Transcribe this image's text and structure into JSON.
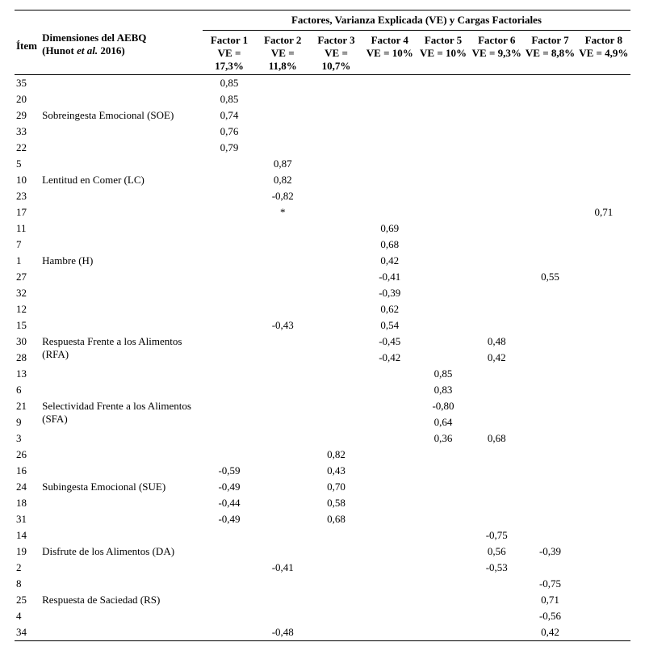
{
  "header": {
    "item": "Ítem",
    "dimension_line1": "Dimensiones del AEBQ",
    "dimension_line2_prefix": "(Hunot ",
    "dimension_line2_italic": "et al.",
    "dimension_line2_suffix": " 2016)",
    "span_title": "Factores, Varianza Explicada (VE) y Cargas Factoriales",
    "factors": [
      {
        "name": "Factor 1",
        "ve": "VE = 17,3%"
      },
      {
        "name": "Factor 2",
        "ve": "VE = 11,8%"
      },
      {
        "name": "Factor 3",
        "ve": "VE = 10,7%"
      },
      {
        "name": "Factor 4",
        "ve": "VE = 10%"
      },
      {
        "name": "Factor 5",
        "ve": "VE = 10%"
      },
      {
        "name": "Factor 6",
        "ve": "VE = 9,3%"
      },
      {
        "name": "Factor 7",
        "ve": "VE = 8,8%"
      },
      {
        "name": "Factor 8",
        "ve": "VE = 4,9%"
      }
    ]
  },
  "blocks": [
    {
      "label": "Sobreingesta Emocional (SOE)",
      "rows": [
        {
          "item": "35",
          "f1": "0,85"
        },
        {
          "item": "20",
          "f1": "0,85"
        },
        {
          "item": "29",
          "f1": "0,74"
        },
        {
          "item": "33",
          "f1": "0,76"
        },
        {
          "item": "22",
          "f1": "0,79"
        }
      ]
    },
    {
      "label": "Lentitud en Comer (LC)",
      "rows": [
        {
          "item": "5",
          "f2": "0,87"
        },
        {
          "item": "10",
          "f2": "0,82"
        },
        {
          "item": "23",
          "f2": "-0,82"
        },
        {
          "item": "17",
          "f2": "*",
          "f8": "0,71"
        }
      ]
    },
    {
      "label": "Hambre (H)",
      "rows": [
        {
          "item": "11",
          "f4": "0,69"
        },
        {
          "item": "7",
          "f4": "0,68"
        },
        {
          "item": "1",
          "f4": "0,42"
        },
        {
          "item": "27",
          "f4": "-0,41",
          "f7": "0,55"
        },
        {
          "item": "32",
          "f4": "-0,39"
        },
        {
          "item": "12",
          "f4": "0,62"
        }
      ]
    },
    {
      "label": "Respuesta Frente a los Alimentos (RFA)",
      "rows": [
        {
          "item": "15",
          "f2": "-0,43",
          "f4": "0,54"
        },
        {
          "item": "30",
          "f4": "-0,45",
          "f6": "0,48"
        },
        {
          "item": "28",
          "f4": "-0,42",
          "f6": "0,42"
        }
      ]
    },
    {
      "label": "Selectividad Frente a los Alimentos (SFA)",
      "rows": [
        {
          "item": "13",
          "f5": "0,85"
        },
        {
          "item": "6",
          "f5": "0,83"
        },
        {
          "item": "21",
          "f5": "-0,80"
        },
        {
          "item": "9",
          "f5": "0,64"
        },
        {
          "item": "3",
          "f5": "0,36",
          "f6": "0,68"
        }
      ]
    },
    {
      "label": "Subingesta Emocional (SUE)",
      "rows": [
        {
          "item": "26",
          "f3": "0,82"
        },
        {
          "item": "16",
          "f1": "-0,59",
          "f3": "0,43"
        },
        {
          "item": "24",
          "f1": "-0,49",
          "f3": "0,70"
        },
        {
          "item": "18",
          "f1": "-0,44",
          "f3": "0,58"
        },
        {
          "item": "31",
          "f1": "-0,49",
          "f3": "0,68"
        }
      ]
    },
    {
      "label": "Disfrute de los Alimentos (DA)",
      "rows": [
        {
          "item": "14",
          "f6": "-0,75"
        },
        {
          "item": "19",
          "f6": "0,56",
          "f7": "-0,39"
        },
        {
          "item": "2",
          "f2": "-0,41",
          "f6": "-0,53"
        }
      ]
    },
    {
      "label": "Respuesta de Saciedad (RS)",
      "rows": [
        {
          "item": "8",
          "f7": "-0,75"
        },
        {
          "item": "25",
          "f7": "0,71"
        },
        {
          "item": "4",
          "f7": "-0,56"
        },
        {
          "item": "34",
          "f2": "-0,48",
          "f7": "0,42"
        }
      ]
    }
  ]
}
